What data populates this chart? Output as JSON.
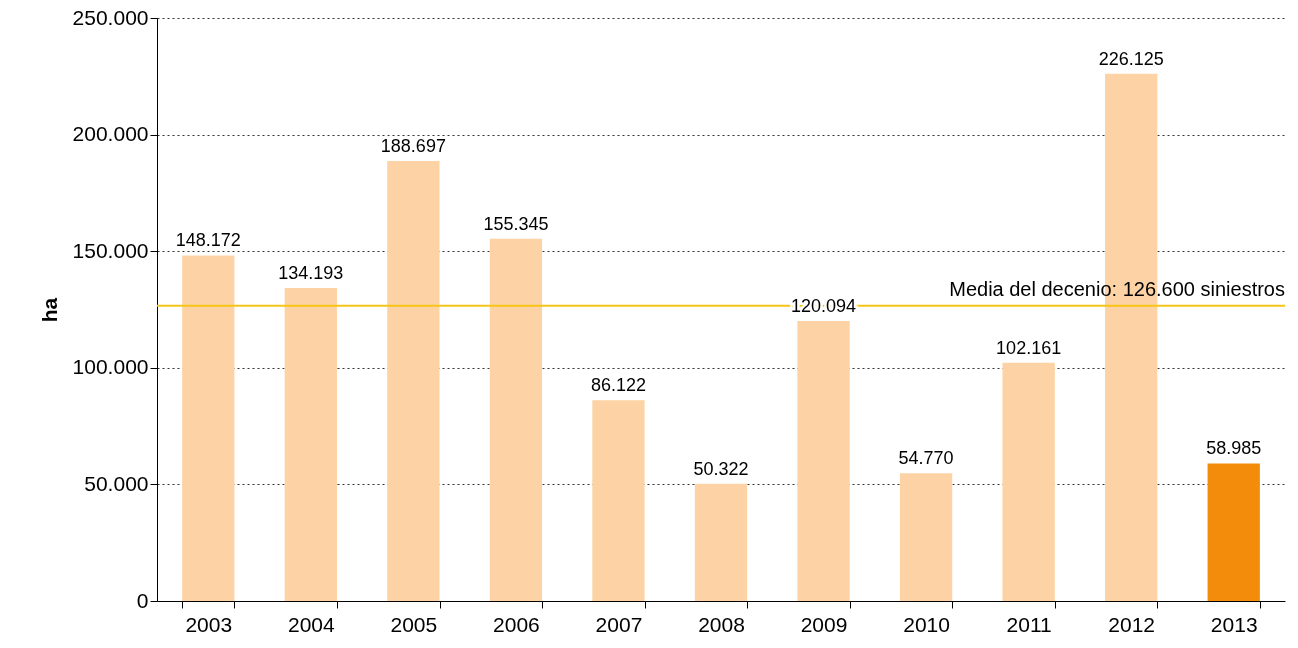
{
  "chart_data": {
    "type": "bar",
    "ylabel": "ha",
    "categories": [
      "2003",
      "2004",
      "2005",
      "2006",
      "2007",
      "2008",
      "2009",
      "2010",
      "2011",
      "2012",
      "2013"
    ],
    "values": [
      148172,
      134193,
      188697,
      155345,
      86122,
      50322,
      120094,
      54770,
      102161,
      226125,
      58985
    ],
    "colors": [
      "#fdd3a5",
      "#fdd3a5",
      "#fdd3a5",
      "#fdd3a5",
      "#fdd3a5",
      "#fdd3a5",
      "#fdd3a5",
      "#fdd3a5",
      "#fdd3a5",
      "#fdd3a5",
      "#f28c0a"
    ],
    "value_labels": [
      "148.172",
      "134.193",
      "188.697",
      "155.345",
      "86.122",
      "50.322",
      "120.094",
      "54.770",
      "102.161",
      "226.125",
      "58.985"
    ],
    "ylim": [
      0,
      250000
    ],
    "yticks": [
      0,
      {
        "value": 50000,
        "label": "50.000"
      },
      {
        "value": 100000,
        "label": "100.000"
      },
      {
        "value": 150000,
        "label": "150.000"
      },
      {
        "value": 200000,
        "label": "200.000"
      },
      {
        "value": 250000,
        "label": "250.000"
      }
    ],
    "grid": "y",
    "ref_lines": [
      {
        "axis": "y",
        "value": 126600,
        "label": "Media del decenio: 126.600 siniestros",
        "color": "#f5c518"
      }
    ]
  }
}
